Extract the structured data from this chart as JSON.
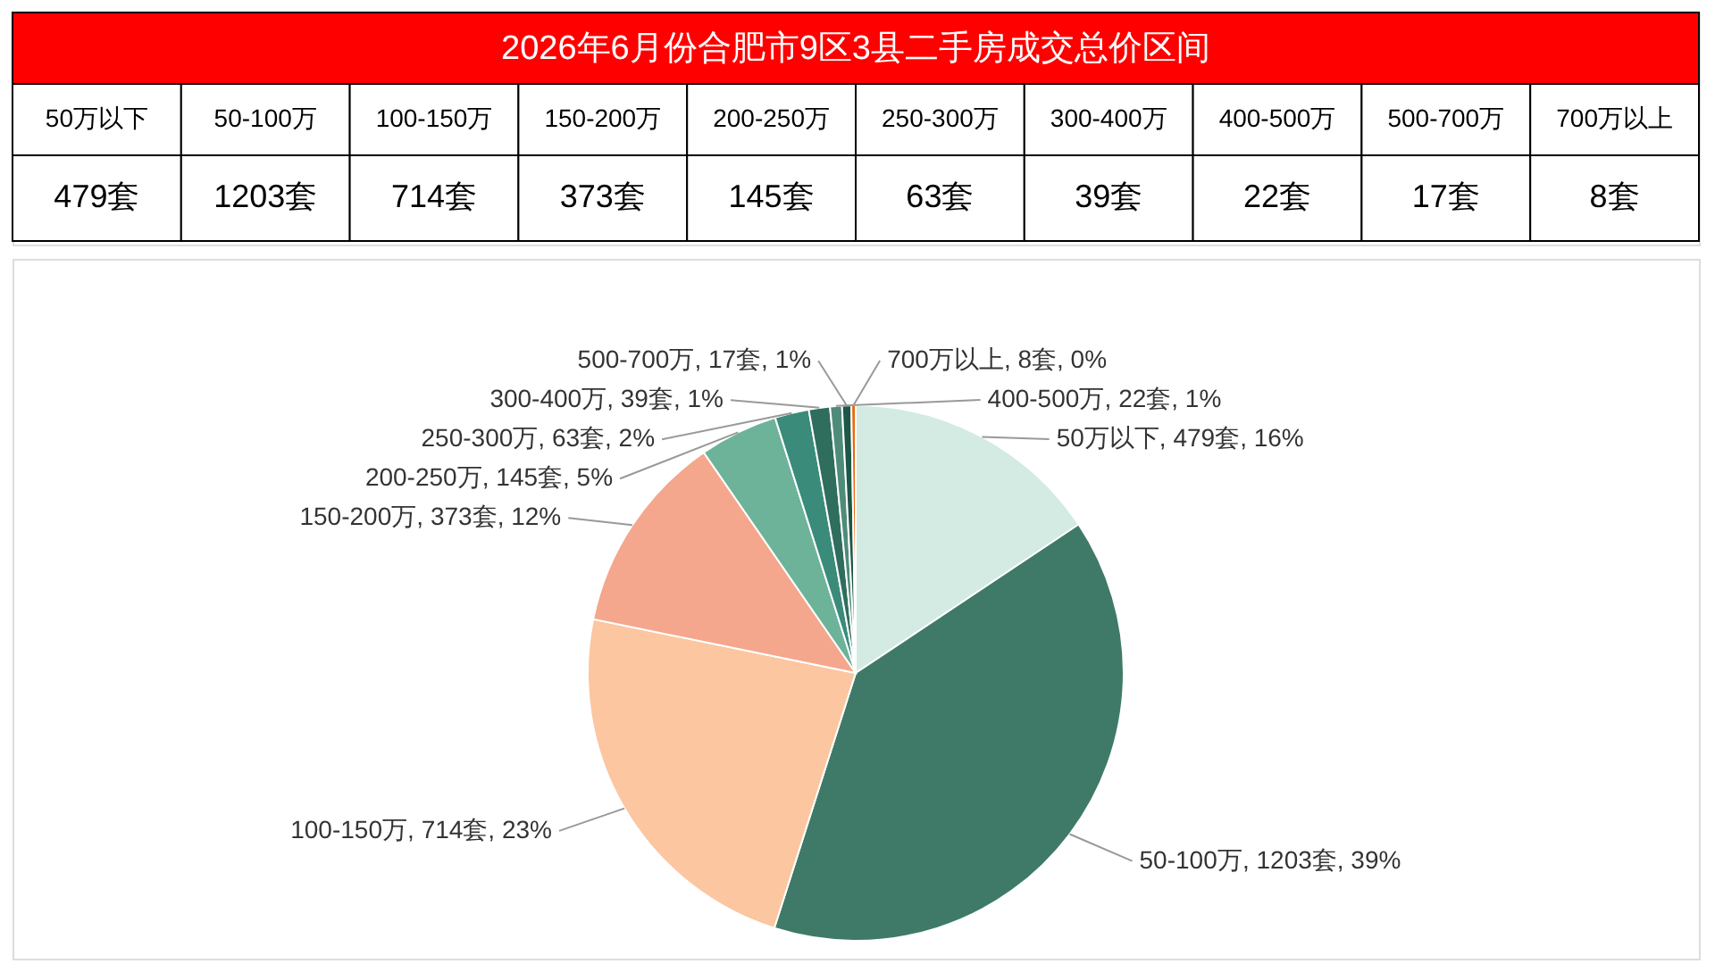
{
  "chart_data": [
    {
      "type": "other",
      "title": "2026年6月份合肥市9区3县二手房成交总价区间",
      "categories": [
        "50万以下",
        "50-100万",
        "100-150万",
        "150-200万",
        "200-250万",
        "250-300万",
        "300-400万",
        "400-500万",
        "500-700万",
        "700万以上"
      ],
      "value_labels": [
        "479套",
        "1203套",
        "714套",
        "373套",
        "145套",
        "63套",
        "39套",
        "22套",
        "17套",
        "8套"
      ]
    },
    {
      "type": "pie",
      "categories": [
        "50万以下",
        "50-100万",
        "100-150万",
        "150-200万",
        "200-250万",
        "250-300万",
        "300-400万",
        "400-500万",
        "500-700万",
        "700万以上"
      ],
      "values": [
        479,
        1203,
        714,
        373,
        145,
        63,
        39,
        22,
        17,
        8
      ],
      "colors": [
        "#d3ebe2",
        "#3f7a68",
        "#fbc6a0",
        "#f4a78c",
        "#6db39a",
        "#3a8b7a",
        "#2f6d5d",
        "#4e8c79",
        "#1e5647",
        "#e8690f"
      ],
      "value_labels": [
        ", 479套, 16%",
        ", 1203套, 39%",
        ", 714套, 23%",
        ", 373套, 12%",
        ", 145套, 5%",
        ", 63套, 2%",
        ", 39套, 1%",
        ", 22套, 1%",
        ", 17套, 1%",
        ", 8套, 0%"
      ]
    }
  ]
}
